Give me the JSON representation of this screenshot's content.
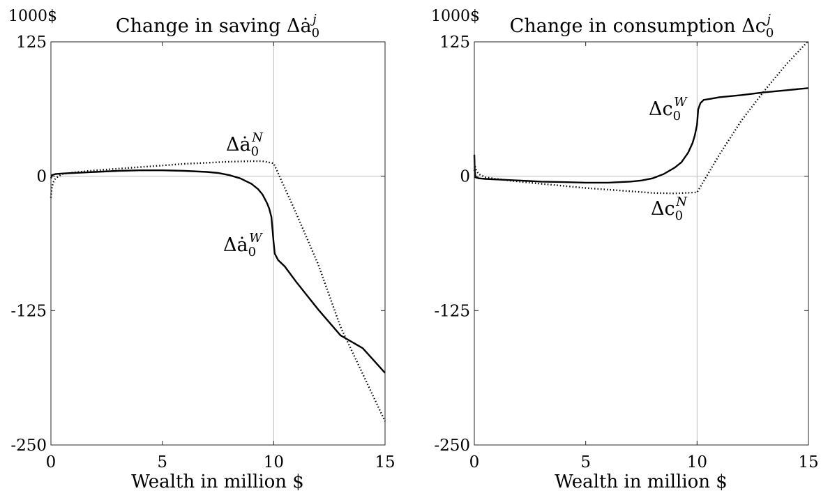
{
  "chart_data": [
    {
      "type": "line",
      "title": "Change in saving Δȧ",
      "title_sub": "0",
      "title_sup": "j",
      "unit_label": "1000$",
      "xlabel": "Wealth in million $",
      "xlim": [
        0,
        15
      ],
      "ylim": [
        -250,
        125
      ],
      "xticks": [
        "0",
        "5",
        "10",
        "15"
      ],
      "xtick_values": [
        0,
        5,
        10,
        15
      ],
      "yticks": [
        "125",
        "0",
        "-125",
        "-250"
      ],
      "ytick_values": [
        125,
        0,
        -125,
        -250
      ],
      "reference_lines": {
        "x": 10,
        "y": 0
      },
      "grid": false,
      "series": [
        {
          "label": "Δȧ",
          "label_sub": "0",
          "label_sup": "W",
          "style": "solid",
          "x": [
            0,
            0.05,
            0.2,
            0.5,
            1,
            2,
            3,
            4,
            5,
            6,
            7,
            7.5,
            8,
            8.5,
            9,
            9.3,
            9.5,
            9.7,
            9.8,
            9.9,
            9.95,
            10,
            10.05,
            10.2,
            10.5,
            11,
            12,
            13,
            14,
            15
          ],
          "y": [
            -2,
            1,
            2,
            2.5,
            3,
            4,
            5,
            5.5,
            5.5,
            5,
            4,
            3,
            1,
            -2,
            -7,
            -12,
            -17,
            -25,
            -30,
            -38,
            -50,
            -62,
            -72,
            -78,
            -84,
            -98,
            -124,
            -148,
            -160,
            -183
          ]
        },
        {
          "label": "Δȧ",
          "label_sub": "0",
          "label_sup": "N",
          "style": "dotted",
          "x": [
            0,
            0.02,
            0.05,
            0.1,
            0.2,
            0.5,
            1,
            2,
            3,
            4,
            5,
            6,
            7,
            8,
            9,
            9.5,
            10,
            11,
            12,
            13,
            14,
            15
          ],
          "y": [
            -20,
            -15,
            -10,
            -6,
            -2,
            2,
            3.5,
            5.5,
            7,
            8.5,
            10,
            11.5,
            12.5,
            13.5,
            14,
            14,
            12,
            -34,
            -82,
            -140,
            -184,
            -228
          ]
        }
      ]
    },
    {
      "type": "line",
      "title": "Change in consumption Δc",
      "title_sub": "0",
      "title_sup": "j",
      "unit_label": "1000$",
      "xlabel": "Wealth in million $",
      "xlim": [
        0,
        15
      ],
      "ylim": [
        -250,
        125
      ],
      "xticks": [
        "0",
        "5",
        "10",
        "15"
      ],
      "xtick_values": [
        0,
        5,
        10,
        15
      ],
      "yticks": [
        "125",
        "0",
        "-125",
        "-250"
      ],
      "ytick_values": [
        125,
        0,
        -125,
        -250
      ],
      "reference_lines": {
        "x": 10,
        "y": 0
      },
      "grid": false,
      "series": [
        {
          "label": "Δc",
          "label_sub": "0",
          "label_sup": "W",
          "style": "solid",
          "x": [
            0,
            0.02,
            0.05,
            0.2,
            0.5,
            1,
            2,
            3,
            4,
            5,
            6,
            7,
            7.5,
            8,
            8.5,
            9,
            9.3,
            9.6,
            9.8,
            9.9,
            10,
            10.05,
            10.15,
            10.3,
            10.6,
            11,
            12,
            13,
            14,
            15
          ],
          "y": [
            20,
            5,
            -1,
            -2,
            -2.5,
            -3,
            -4,
            -5,
            -5.5,
            -6,
            -6,
            -5,
            -4,
            -2,
            2,
            8,
            13,
            22,
            31,
            38,
            48,
            62,
            68,
            71,
            72,
            73.5,
            75.5,
            78,
            80,
            82
          ]
        },
        {
          "label": "Δc",
          "label_sub": "0",
          "label_sup": "N",
          "style": "dotted",
          "x": [
            0,
            0.02,
            0.05,
            0.1,
            0.2,
            0.5,
            1,
            2,
            3,
            4,
            5,
            6,
            7,
            8,
            9,
            10,
            11,
            12,
            13,
            14,
            15
          ],
          "y": [
            5,
            10,
            8,
            5,
            2,
            -1,
            -2.5,
            -5,
            -7,
            -9,
            -11,
            -12.5,
            -14,
            -15.5,
            -16,
            -15,
            20,
            52,
            79,
            104,
            126
          ]
        }
      ]
    }
  ]
}
